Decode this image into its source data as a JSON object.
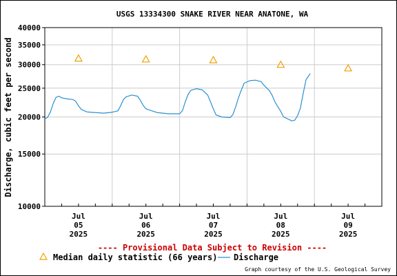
{
  "chart_data": {
    "type": "line",
    "title": "USGS 13334300 SNAKE RIVER NEAR ANATONE, WA",
    "ylabel": "Discharge, cubic feet per second",
    "yscale": "log",
    "ylim": [
      10000,
      40000
    ],
    "y_ticks": [
      "40000",
      "35000",
      "30000",
      "25000",
      "20000",
      "15000",
      "10000"
    ],
    "y_tick_values": [
      40000,
      35000,
      30000,
      25000,
      20000,
      15000,
      10000
    ],
    "x_range_hours": [
      0,
      120
    ],
    "x_ticks": [
      {
        "hour": 12,
        "lines": [
          "Jul",
          "05",
          "2025"
        ]
      },
      {
        "hour": 36,
        "lines": [
          "Jul",
          "06",
          "2025"
        ]
      },
      {
        "hour": 60,
        "lines": [
          "Jul",
          "07",
          "2025"
        ]
      },
      {
        "hour": 84,
        "lines": [
          "Jul",
          "08",
          "2025"
        ]
      },
      {
        "hour": 108,
        "lines": [
          "Jul",
          "09",
          "2025"
        ]
      }
    ],
    "grid": true,
    "series": [
      {
        "name": "Discharge",
        "color": "#2a8fd0",
        "points": [
          [
            0,
            19700
          ],
          [
            1,
            19950
          ],
          [
            2,
            20800
          ],
          [
            3,
            22200
          ],
          [
            4,
            23300
          ],
          [
            5,
            23500
          ],
          [
            6,
            23200
          ],
          [
            8,
            23000
          ],
          [
            10,
            22900
          ],
          [
            11,
            22600
          ],
          [
            12,
            21800
          ],
          [
            13,
            21200
          ],
          [
            15,
            20800
          ],
          [
            18,
            20700
          ],
          [
            21,
            20600
          ],
          [
            24,
            20750
          ],
          [
            26,
            20950
          ],
          [
            27,
            21800
          ],
          [
            28,
            22900
          ],
          [
            29,
            23400
          ],
          [
            31,
            23700
          ],
          [
            33,
            23500
          ],
          [
            34,
            22800
          ],
          [
            35,
            21900
          ],
          [
            36,
            21300
          ],
          [
            38,
            21000
          ],
          [
            40,
            20700
          ],
          [
            44,
            20500
          ],
          [
            48,
            20500
          ],
          [
            49,
            21000
          ],
          [
            50,
            22500
          ],
          [
            51,
            23800
          ],
          [
            52,
            24600
          ],
          [
            54,
            24900
          ],
          [
            56,
            24700
          ],
          [
            58,
            23700
          ],
          [
            59,
            22500
          ],
          [
            60,
            21300
          ],
          [
            61,
            20300
          ],
          [
            63,
            20000
          ],
          [
            66,
            19900
          ],
          [
            67,
            20400
          ],
          [
            68,
            21700
          ],
          [
            69,
            23300
          ],
          [
            70,
            24700
          ],
          [
            71,
            26000
          ],
          [
            73,
            26500
          ],
          [
            75,
            26600
          ],
          [
            77,
            26300
          ],
          [
            78,
            25600
          ],
          [
            80,
            24500
          ],
          [
            81,
            23600
          ],
          [
            82,
            22400
          ],
          [
            84,
            20900
          ],
          [
            85,
            20000
          ],
          [
            87,
            19600
          ],
          [
            88,
            19400
          ],
          [
            89,
            19500
          ],
          [
            90,
            20200
          ],
          [
            91,
            21400
          ],
          [
            92,
            24000
          ],
          [
            93,
            26700
          ],
          [
            94.5,
            28000
          ]
        ]
      },
      {
        "name": "Median daily statistic (66 years)",
        "color": "#f0a000",
        "marker": "triangle",
        "points": [
          [
            12,
            31500
          ],
          [
            36,
            31300
          ],
          [
            60,
            31100
          ],
          [
            84,
            30000
          ],
          [
            108,
            29200
          ]
        ]
      }
    ],
    "annotation": "---- Provisional Data Subject to Revision ----",
    "annotation_color": "#cc0000",
    "legend": [
      "Median daily statistic (66 years)",
      "Discharge"
    ],
    "legend_position": "bottom",
    "credit": "Graph courtesy of the U.S. Geological Survey"
  }
}
